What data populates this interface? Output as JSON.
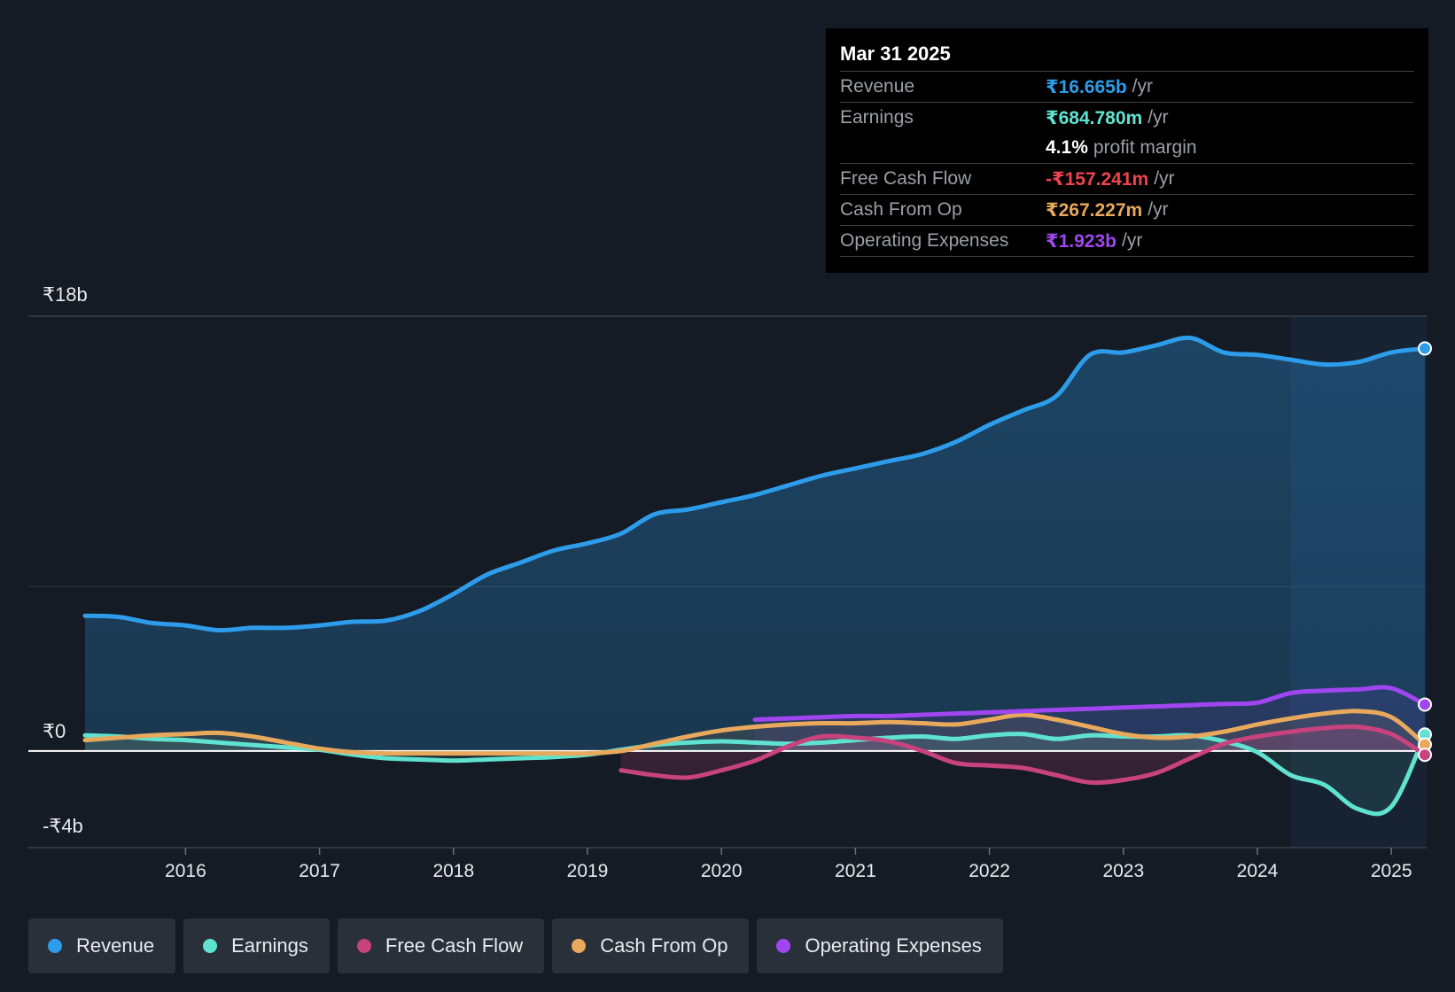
{
  "colors": {
    "revenue": "#2d9cea",
    "earnings": "#5fe3d0",
    "free_cash_flow": "#c8437d",
    "cash_from_op": "#e8a95c",
    "operating_expenses": "#a046f0",
    "negative_value": "#f0434e"
  },
  "tooltip": {
    "date": "Mar 31 2025",
    "rows": [
      {
        "label": "Revenue",
        "value": "₹16.665b",
        "unit": "/yr"
      },
      {
        "label": "Earnings",
        "value": "₹684.780m",
        "unit": "/yr"
      },
      {
        "label": "",
        "value": "4.1%",
        "unit": "profit margin"
      },
      {
        "label": "Free Cash Flow",
        "value": "-₹157.241m",
        "unit": "/yr"
      },
      {
        "label": "Cash From Op",
        "value": "₹267.227m",
        "unit": "/yr"
      },
      {
        "label": "Operating Expenses",
        "value": "₹1.923b",
        "unit": "/yr"
      }
    ]
  },
  "legend": [
    "Revenue",
    "Earnings",
    "Free Cash Flow",
    "Cash From Op",
    "Operating Expenses"
  ],
  "chart_data": {
    "type": "line",
    "title": "",
    "xlabel": "",
    "ylabel": "",
    "y_labels": {
      "top": "₹18b",
      "zero": "₹0",
      "bottom": "-₹4b"
    },
    "ylim": [
      -4,
      18
    ],
    "xlim": [
      2015.25,
      2025.25
    ],
    "xticks": [
      "2016",
      "2017",
      "2018",
      "2019",
      "2020",
      "2021",
      "2022",
      "2023",
      "2024",
      "2025"
    ],
    "highlight_range": [
      2024.25,
      2025.25
    ],
    "series": [
      {
        "name": "Revenue",
        "key": "revenue",
        "unit": "₹b",
        "x": [
          2015.25,
          2015.5,
          2015.75,
          2016.0,
          2016.25,
          2016.5,
          2016.75,
          2017.0,
          2017.25,
          2017.5,
          2017.75,
          2018.0,
          2018.25,
          2018.5,
          2018.75,
          2019.0,
          2019.25,
          2019.5,
          2019.75,
          2020.0,
          2020.25,
          2020.5,
          2020.75,
          2021.0,
          2021.25,
          2021.5,
          2021.75,
          2022.0,
          2022.25,
          2022.5,
          2022.75,
          2023.0,
          2023.25,
          2023.5,
          2023.75,
          2024.0,
          2024.25,
          2024.5,
          2024.75,
          2025.0,
          2025.25
        ],
        "values": [
          5.6,
          5.55,
          5.3,
          5.2,
          5.0,
          5.1,
          5.1,
          5.2,
          5.35,
          5.4,
          5.8,
          6.5,
          7.3,
          7.8,
          8.3,
          8.6,
          9.0,
          9.8,
          10.0,
          10.3,
          10.6,
          11.0,
          11.4,
          11.7,
          12.0,
          12.3,
          12.8,
          13.5,
          14.1,
          14.7,
          16.4,
          16.5,
          16.8,
          17.1,
          16.5,
          16.4,
          16.2,
          16.0,
          16.1,
          16.5,
          16.665
        ]
      },
      {
        "name": "Earnings",
        "key": "earnings",
        "unit": "₹b",
        "x": [
          2015.25,
          2015.5,
          2015.75,
          2016.0,
          2016.25,
          2016.5,
          2016.75,
          2017.0,
          2017.25,
          2017.5,
          2017.75,
          2018.0,
          2018.25,
          2018.5,
          2018.75,
          2019.0,
          2019.25,
          2019.5,
          2019.75,
          2020.0,
          2020.25,
          2020.5,
          2020.75,
          2021.0,
          2021.25,
          2021.5,
          2021.75,
          2022.0,
          2022.25,
          2022.5,
          2022.75,
          2023.0,
          2023.25,
          2023.5,
          2023.75,
          2024.0,
          2024.25,
          2024.5,
          2024.75,
          2025.0,
          2025.25
        ],
        "values": [
          0.65,
          0.6,
          0.5,
          0.45,
          0.35,
          0.25,
          0.15,
          0.05,
          -0.15,
          -0.3,
          -0.35,
          -0.4,
          -0.35,
          -0.3,
          -0.25,
          -0.15,
          0.05,
          0.25,
          0.35,
          0.4,
          0.35,
          0.3,
          0.35,
          0.45,
          0.55,
          0.6,
          0.5,
          0.65,
          0.7,
          0.5,
          0.65,
          0.6,
          0.6,
          0.65,
          0.4,
          -0.05,
          -1.0,
          -1.4,
          -2.4,
          -2.3,
          0.685
        ]
      },
      {
        "name": "Free Cash Flow",
        "key": "free_cash_flow",
        "unit": "₹b",
        "x": [
          2019.25,
          2019.5,
          2019.75,
          2020.0,
          2020.25,
          2020.5,
          2020.75,
          2021.0,
          2021.25,
          2021.5,
          2021.75,
          2022.0,
          2022.25,
          2022.5,
          2022.75,
          2023.0,
          2023.25,
          2023.5,
          2023.75,
          2024.0,
          2024.25,
          2024.5,
          2024.75,
          2025.0,
          2025.25
        ],
        "values": [
          -0.8,
          -1.0,
          -1.1,
          -0.8,
          -0.4,
          0.2,
          0.6,
          0.55,
          0.4,
          0.0,
          -0.5,
          -0.6,
          -0.7,
          -1.0,
          -1.3,
          -1.2,
          -0.9,
          -0.3,
          0.3,
          0.6,
          0.8,
          0.95,
          1.0,
          0.7,
          -0.157
        ]
      },
      {
        "name": "Cash From Op",
        "key": "cash_from_op",
        "unit": "₹b",
        "x": [
          2015.25,
          2015.5,
          2015.75,
          2016.0,
          2016.25,
          2016.5,
          2016.75,
          2017.0,
          2017.25,
          2017.5,
          2017.75,
          2018.0,
          2018.25,
          2018.5,
          2018.75,
          2019.0,
          2019.25,
          2019.5,
          2019.75,
          2020.0,
          2020.25,
          2020.5,
          2020.75,
          2021.0,
          2021.25,
          2021.5,
          2021.75,
          2022.0,
          2022.25,
          2022.5,
          2022.75,
          2023.0,
          2023.25,
          2023.5,
          2023.75,
          2024.0,
          2024.25,
          2024.5,
          2024.75,
          2025.0,
          2025.25
        ],
        "values": [
          0.45,
          0.55,
          0.65,
          0.7,
          0.75,
          0.6,
          0.35,
          0.1,
          -0.05,
          -0.1,
          -0.1,
          -0.1,
          -0.1,
          -0.1,
          -0.1,
          -0.1,
          0.0,
          0.3,
          0.6,
          0.85,
          1.0,
          1.1,
          1.15,
          1.15,
          1.2,
          1.15,
          1.1,
          1.3,
          1.5,
          1.3,
          1.0,
          0.7,
          0.55,
          0.6,
          0.8,
          1.1,
          1.35,
          1.55,
          1.65,
          1.4,
          0.267
        ]
      },
      {
        "name": "Operating Expenses",
        "key": "operating_expenses",
        "unit": "₹b",
        "x": [
          2020.25,
          2020.5,
          2020.75,
          2021.0,
          2021.25,
          2021.5,
          2021.75,
          2022.0,
          2022.25,
          2022.5,
          2022.75,
          2023.0,
          2023.25,
          2023.5,
          2023.75,
          2024.0,
          2024.25,
          2024.5,
          2024.75,
          2025.0,
          2025.25
        ],
        "values": [
          1.3,
          1.35,
          1.4,
          1.45,
          1.45,
          1.5,
          1.55,
          1.6,
          1.65,
          1.7,
          1.75,
          1.8,
          1.85,
          1.9,
          1.95,
          2.0,
          2.4,
          2.5,
          2.55,
          2.6,
          1.923
        ]
      }
    ]
  }
}
